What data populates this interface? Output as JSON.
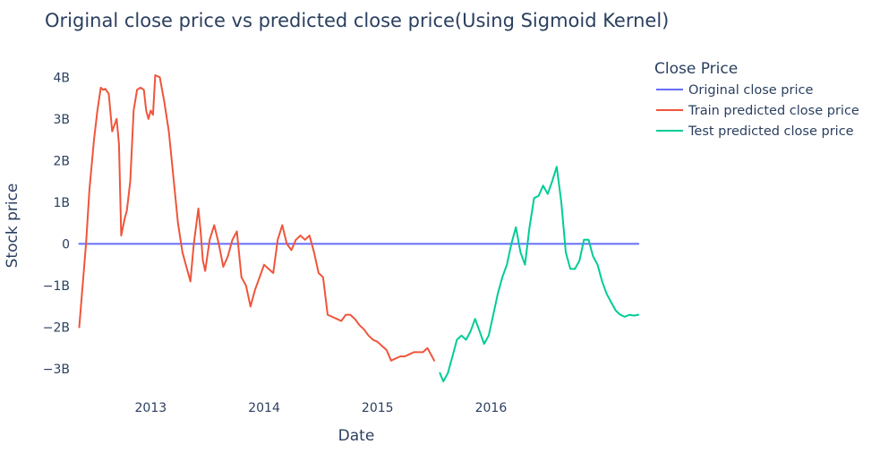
{
  "chart_data": {
    "type": "line",
    "title": "Original close price vs predicted close price(Using Sigmoid Kernel)",
    "xlabel": "Date",
    "ylabel": "Stock price",
    "x_ticks": [
      {
        "label": "2013",
        "value": 2013.0
      },
      {
        "label": "2014",
        "value": 2014.0
      },
      {
        "label": "2015",
        "value": 2015.0
      },
      {
        "label": "2016",
        "value": 2016.0
      }
    ],
    "y_ticks": [
      {
        "label": "4B",
        "value": 4
      },
      {
        "label": "3B",
        "value": 3
      },
      {
        "label": "2B",
        "value": 2
      },
      {
        "label": "1B",
        "value": 1
      },
      {
        "label": "0",
        "value": 0
      },
      {
        "label": "−1B",
        "value": -1
      },
      {
        "label": "−2B",
        "value": -2
      },
      {
        "label": "−3B",
        "value": -3
      }
    ],
    "xlim": [
      2012.35,
      2017.37
    ],
    "ylim": [
      -3.45,
      4.35
    ],
    "y_unit": "billions",
    "legend_title": "Close Price",
    "series": [
      {
        "name": "Original close price",
        "color": "#636efa",
        "x": [
          2012.37,
          2017.3
        ],
        "y": [
          0.0,
          0.0
        ]
      },
      {
        "name": "Train predicted close price",
        "color": "#ef553b",
        "x": [
          2012.37,
          2012.4,
          2012.43,
          2012.46,
          2012.5,
          2012.53,
          2012.56,
          2012.58,
          2012.6,
          2012.63,
          2012.66,
          2012.7,
          2012.72,
          2012.74,
          2012.77,
          2012.79,
          2012.82,
          2012.85,
          2012.88,
          2012.91,
          2012.94,
          2012.96,
          2012.98,
          2013.0,
          2013.02,
          2013.04,
          2013.08,
          2013.12,
          2013.16,
          2013.2,
          2013.24,
          2013.28,
          2013.31,
          2013.35,
          2013.38,
          2013.42,
          2013.44,
          2013.46,
          2013.48,
          2013.52,
          2013.56,
          2013.6,
          2013.64,
          2013.68,
          2013.72,
          2013.76,
          2013.8,
          2013.84,
          2013.88,
          2013.92,
          2013.96,
          2014.0,
          2014.04,
          2014.08,
          2014.12,
          2014.16,
          2014.2,
          2014.24,
          2014.28,
          2014.32,
          2014.36,
          2014.4,
          2014.44,
          2014.48,
          2014.52,
          2014.56,
          2014.6,
          2014.64,
          2014.68,
          2014.72,
          2014.76,
          2014.8,
          2014.84,
          2014.88,
          2014.92,
          2014.96,
          2015.0,
          2015.04,
          2015.08,
          2015.12,
          2015.16,
          2015.2,
          2015.24,
          2015.28,
          2015.32,
          2015.36,
          2015.4,
          2015.44,
          2015.5
        ],
        "y": [
          -2.0,
          -1.0,
          0.0,
          1.3,
          2.5,
          3.2,
          3.75,
          3.7,
          3.72,
          3.6,
          2.7,
          3.0,
          2.4,
          0.2,
          0.6,
          0.8,
          1.5,
          3.2,
          3.7,
          3.75,
          3.7,
          3.2,
          3.0,
          3.2,
          3.1,
          4.05,
          4.0,
          3.4,
          2.7,
          1.6,
          0.5,
          -0.2,
          -0.5,
          -0.9,
          0.0,
          0.85,
          0.3,
          -0.4,
          -0.65,
          0.1,
          0.45,
          0.0,
          -0.55,
          -0.3,
          0.1,
          0.3,
          -0.8,
          -1.0,
          -1.5,
          -1.1,
          -0.8,
          -0.5,
          -0.6,
          -0.7,
          0.1,
          0.45,
          0.0,
          -0.15,
          0.1,
          0.2,
          0.1,
          0.2,
          -0.2,
          -0.7,
          -0.8,
          -1.7,
          -1.75,
          -1.8,
          -1.85,
          -1.7,
          -1.7,
          -1.8,
          -1.95,
          -2.05,
          -2.2,
          -2.3,
          -2.35,
          -2.45,
          -2.55,
          -2.8,
          -2.75,
          -2.7,
          -2.7,
          -2.65,
          -2.6,
          -2.6,
          -2.6,
          -2.5,
          -2.8
        ]
      },
      {
        "name": "Test predicted close price",
        "color": "#00cc96",
        "x": [
          2015.55,
          2015.58,
          2015.62,
          2015.66,
          2015.7,
          2015.74,
          2015.78,
          2015.82,
          2015.86,
          2015.9,
          2015.94,
          2015.98,
          2016.02,
          2016.06,
          2016.1,
          2016.14,
          2016.18,
          2016.22,
          2016.26,
          2016.3,
          2016.34,
          2016.38,
          2016.42,
          2016.46,
          2016.5,
          2016.54,
          2016.58,
          2016.62,
          2016.66,
          2016.7,
          2016.74,
          2016.78,
          2016.82,
          2016.86,
          2016.9,
          2016.94,
          2016.98,
          2017.02,
          2017.06,
          2017.1,
          2017.14,
          2017.18,
          2017.22,
          2017.26,
          2017.3
        ],
        "y": [
          -3.1,
          -3.3,
          -3.1,
          -2.7,
          -2.3,
          -2.2,
          -2.3,
          -2.1,
          -1.8,
          -2.1,
          -2.4,
          -2.2,
          -1.7,
          -1.2,
          -0.8,
          -0.5,
          0.0,
          0.4,
          -0.2,
          -0.5,
          0.4,
          1.1,
          1.15,
          1.4,
          1.2,
          1.5,
          1.85,
          1.0,
          -0.2,
          -0.6,
          -0.6,
          -0.4,
          0.1,
          0.1,
          -0.3,
          -0.5,
          -0.9,
          -1.2,
          -1.4,
          -1.6,
          -1.7,
          -1.75,
          -1.7,
          -1.72,
          -1.7
        ]
      }
    ]
  }
}
